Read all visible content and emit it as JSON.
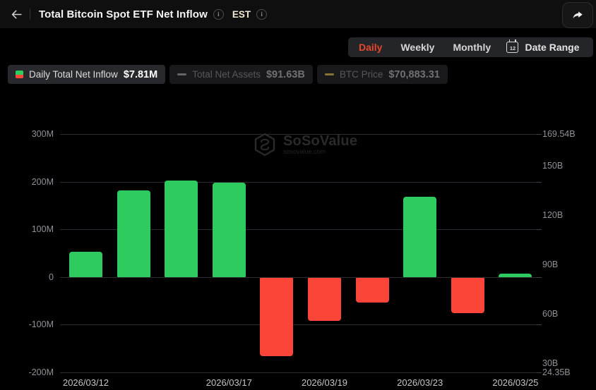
{
  "header": {
    "title": "Total Bitcoin Spot ETF Net Inflow",
    "timezone": "EST"
  },
  "controls": {
    "tabs": [
      {
        "label": "Daily",
        "active": true
      },
      {
        "label": "Weekly",
        "active": false
      },
      {
        "label": "Monthly",
        "active": false
      }
    ],
    "date_range": {
      "label": "Date Range",
      "calendar_day": "12"
    }
  },
  "legend": [
    {
      "label": "Daily Total Net Inflow",
      "value": "$7.81M",
      "active": true,
      "marker": "split-square"
    },
    {
      "label": "Total Net Assets",
      "value": "$91.63B",
      "active": false,
      "marker": "dash",
      "marker_color": "#62656a"
    },
    {
      "label": "BTC Price",
      "value": "$70,883.31",
      "active": false,
      "marker": "dash",
      "marker_color": "#837434"
    }
  ],
  "watermark": {
    "name": "SoSoValue",
    "domain": "sosovalue.com"
  },
  "chart_data": {
    "type": "bar",
    "title": "Total Bitcoin Spot ETF Net Inflow",
    "grid": true,
    "bar_values_musd": [
      53,
      182,
      202,
      198,
      -164,
      -90,
      -52,
      168,
      -75,
      7.81
    ],
    "x_ticks": [
      {
        "label": "2026/03/12",
        "bar_index": 0
      },
      {
        "label": "2026/03/17",
        "bar_index": 3
      },
      {
        "label": "2026/03/19",
        "bar_index": 5
      },
      {
        "label": "2026/03/23",
        "bar_index": 7
      },
      {
        "label": "2026/03/25",
        "bar_index": 9
      }
    ],
    "left_axis": {
      "range_musd": [
        -200,
        300
      ],
      "ticks": [
        {
          "label": "300M",
          "value": 300
        },
        {
          "label": "200M",
          "value": 200
        },
        {
          "label": "100M",
          "value": 100
        },
        {
          "label": "0",
          "value": 0
        },
        {
          "label": "-100M",
          "value": -100
        },
        {
          "label": "-200M",
          "value": -200
        }
      ]
    },
    "right_axis": {
      "range_busd": [
        24.35,
        169.54
      ],
      "ticks": [
        {
          "label": "169.54B",
          "value": 169.54
        },
        {
          "label": "150B",
          "value": 150
        },
        {
          "label": "120B",
          "value": 120
        },
        {
          "label": "90B",
          "value": 90
        },
        {
          "label": "60B",
          "value": 60
        },
        {
          "label": "30B",
          "value": 30
        },
        {
          "label": "24.35B",
          "value": 24.35
        }
      ]
    },
    "colors": {
      "positive": "#2ecc5e",
      "negative": "#fa4538"
    }
  }
}
